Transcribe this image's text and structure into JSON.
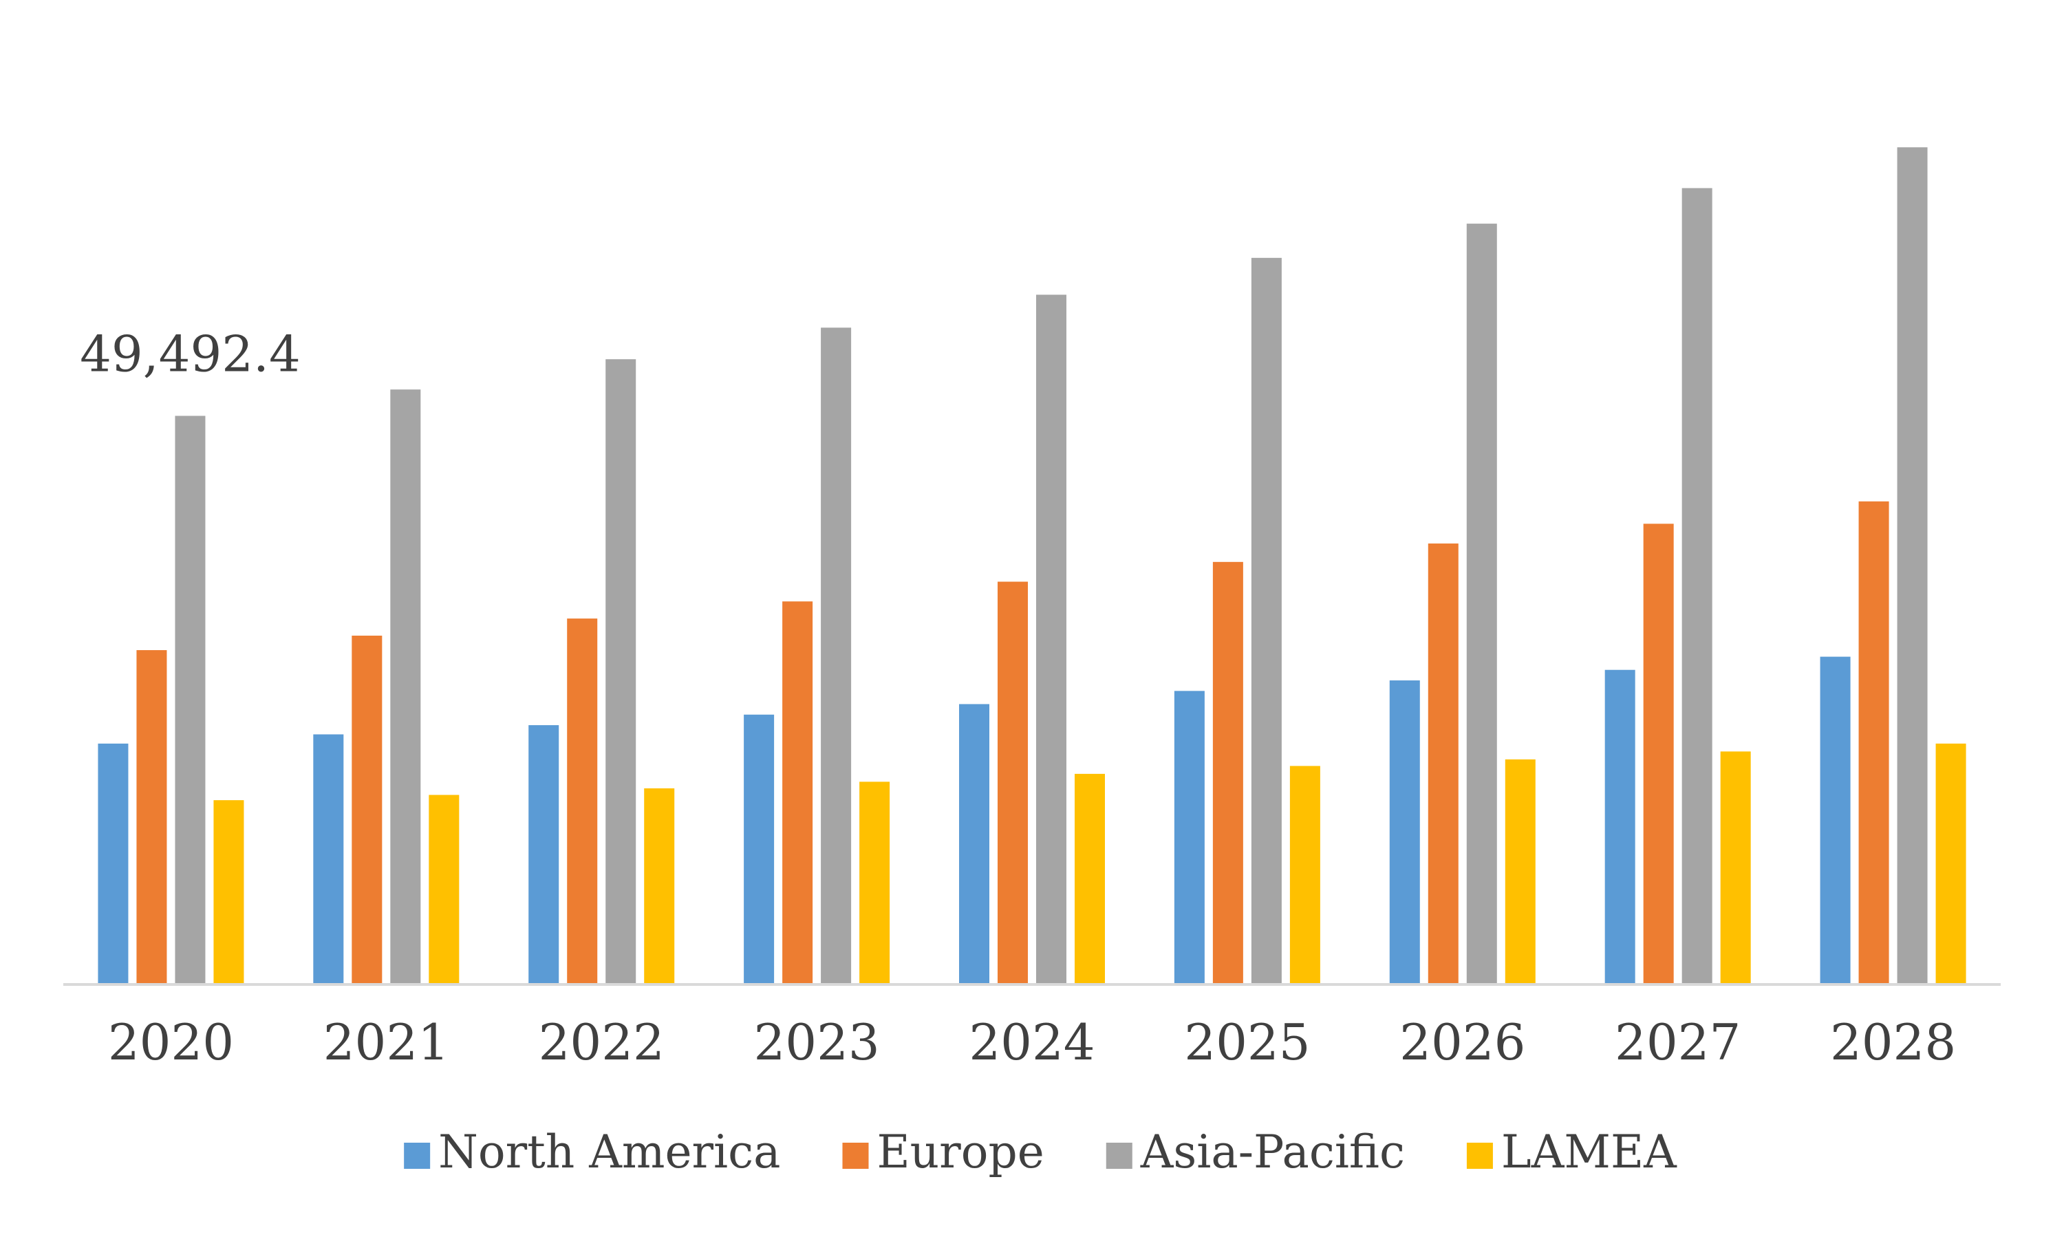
{
  "chart_data": {
    "type": "bar",
    "categories": [
      "2020",
      "2021",
      "2022",
      "2023",
      "2024",
      "2025",
      "2026",
      "2027",
      "2028"
    ],
    "series": [
      {
        "name": "North America",
        "color": "#5b9bd5",
        "values": [
          20966,
          21768,
          22570,
          23487,
          24403,
          25549,
          26465,
          27382,
          28528
        ]
      },
      {
        "name": "Europe",
        "color": "#ed7d31",
        "values": [
          29100,
          30361,
          31850,
          33340,
          35058,
          36777,
          38381,
          40100,
          42047
        ]
      },
      {
        "name": "Asia-Pacific",
        "color": "#a5a5a5",
        "values": [
          49492.4,
          51786,
          54421,
          57170,
          60035,
          63243,
          66221,
          69315,
          72867
        ],
        "value_labels": [
          "49,492.4",
          null,
          null,
          null,
          null,
          null,
          null,
          null,
          null
        ]
      },
      {
        "name": "LAMEA",
        "color": "#ffc000",
        "values": [
          16040,
          16498,
          17071,
          17644,
          18331,
          19018,
          19591,
          20279,
          20966
        ]
      }
    ],
    "ylim": [
      0,
      80000
    ],
    "legend": "bottom",
    "grid": false
  }
}
